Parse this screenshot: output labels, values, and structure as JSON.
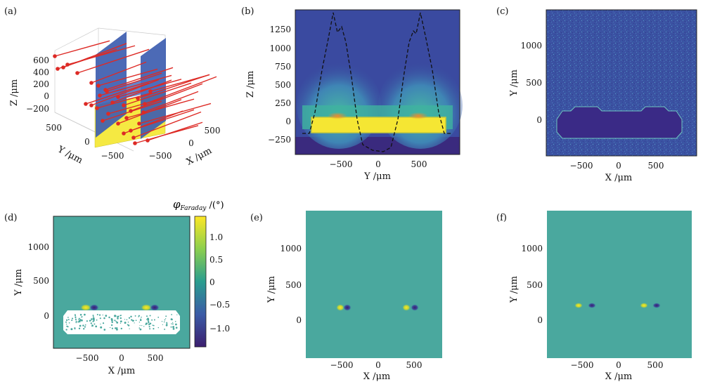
{
  "panels": {
    "a": {
      "label": "(a)",
      "z_ticks": [
        "600",
        "400",
        "200",
        "0",
        "−200"
      ],
      "y_ticks": [
        "500",
        "0",
        "−500"
      ],
      "x_ticks": [
        "500",
        "0",
        "−500"
      ],
      "z_label": "Z /μm",
      "y_label": "Y /μm",
      "x_label": "X /μm",
      "colors": {
        "ray": "#dd2a25",
        "plane": "#3d5db0",
        "slab": "#f5e942"
      }
    },
    "b": {
      "label": "(b)",
      "y_ticks": [
        "1250",
        "1000",
        "750",
        "500",
        "250",
        "0",
        "−250"
      ],
      "x_ticks": [
        "−500",
        "0",
        "500"
      ],
      "y_label": "Z /μm",
      "x_label": "Y /μm"
    },
    "c": {
      "label": "(c)",
      "y_ticks": [
        "1000",
        "500",
        "0"
      ],
      "x_ticks": [
        "−500",
        "0",
        "500"
      ],
      "y_label": "Y /μm",
      "x_label": "X /μm"
    },
    "d": {
      "label": "(d)",
      "y_ticks": [
        "1000",
        "500",
        "0"
      ],
      "x_ticks": [
        "−500",
        "0",
        "500"
      ],
      "y_label": "Y /μm",
      "x_label": "X /μm",
      "colorbar_title": "φ",
      "colorbar_sub": "Faraday",
      "colorbar_unit": " /(°)",
      "colorbar_ticks": [
        "1.0",
        "0.5",
        "0",
        "−0.5",
        "−1.0"
      ]
    },
    "e": {
      "label": "(e)",
      "y_ticks": [
        "1000",
        "500",
        "0"
      ],
      "x_ticks": [
        "−500",
        "0",
        "500"
      ],
      "y_label": "Y /μm",
      "x_label": "X /μm"
    },
    "f": {
      "label": "(f)",
      "y_ticks": [
        "1000",
        "500",
        "0"
      ],
      "x_ticks": [
        "−500",
        "0",
        "500"
      ],
      "y_label": "Y /μm",
      "x_label": "X /μm"
    }
  },
  "colormap": [
    "#440154",
    "#3b528b",
    "#21908c",
    "#5ec962",
    "#fde725"
  ],
  "field_bg": "#4aa89e",
  "background_dark": "#3a3f9e"
}
